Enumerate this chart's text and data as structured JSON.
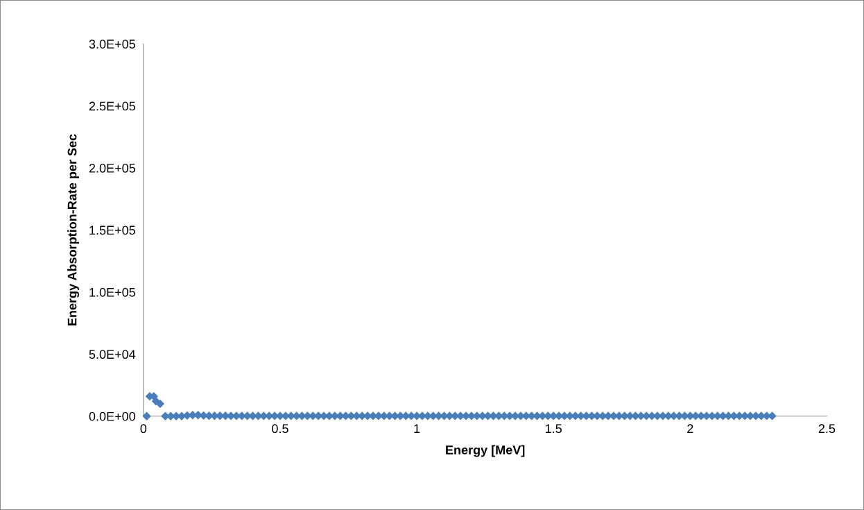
{
  "chart_data": {
    "type": "scatter",
    "xlabel": "Energy [MeV]",
    "ylabel": "Energy Absorption-Rate per Sec",
    "xlim": [
      0,
      2.5
    ],
    "xticks": [
      0,
      0.5,
      1,
      1.5,
      2,
      2.5
    ],
    "ylim": [
      0,
      300000
    ],
    "yticks": [
      {
        "value": 0,
        "label": "0.0E+00"
      },
      {
        "value": 50000,
        "label": "5.0E+04"
      },
      {
        "value": 100000,
        "label": "1.0E+05"
      },
      {
        "value": 150000,
        "label": "1.5E+05"
      },
      {
        "value": 200000,
        "label": "2.0E+05"
      },
      {
        "value": 250000,
        "label": "2.5E+05"
      },
      {
        "value": 300000,
        "label": "3.0E+05"
      }
    ],
    "grid": false,
    "legend": false,
    "marker": "diamond",
    "series": [
      {
        "color": "#4a7ebb",
        "x": [
          0.012,
          0.023,
          0.038,
          0.046,
          0.061,
          0.08,
          0.1,
          0.12,
          0.14,
          0.16,
          0.18,
          0.2,
          0.22,
          0.24,
          0.26,
          0.28,
          0.3,
          0.32,
          0.34,
          0.36,
          0.38,
          0.4,
          0.42,
          0.44,
          0.46,
          0.48,
          0.5,
          0.52,
          0.54,
          0.56,
          0.58,
          0.6,
          0.62,
          0.64,
          0.66,
          0.68,
          0.7,
          0.72,
          0.74,
          0.76,
          0.78,
          0.8,
          0.82,
          0.84,
          0.86,
          0.88,
          0.9,
          0.92,
          0.94,
          0.96,
          0.98,
          1.0,
          1.02,
          1.04,
          1.06,
          1.08,
          1.1,
          1.12,
          1.14,
          1.16,
          1.18,
          1.2,
          1.22,
          1.24,
          1.26,
          1.28,
          1.3,
          1.32,
          1.34,
          1.36,
          1.38,
          1.4,
          1.42,
          1.44,
          1.46,
          1.48,
          1.5,
          1.52,
          1.54,
          1.56,
          1.58,
          1.6,
          1.62,
          1.64,
          1.66,
          1.68,
          1.7,
          1.72,
          1.74,
          1.76,
          1.78,
          1.8,
          1.82,
          1.84,
          1.86,
          1.88,
          1.9,
          1.92,
          1.94,
          1.96,
          1.98,
          2.0,
          2.02,
          2.04,
          2.06,
          2.08,
          2.1,
          2.12,
          2.14,
          2.16,
          2.18,
          2.2,
          2.22,
          2.24,
          2.26,
          2.28,
          2.3
        ],
        "values": [
          0,
          16000,
          16000,
          12000,
          10000,
          0,
          0,
          0,
          0,
          500,
          800,
          800,
          500,
          300,
          300,
          300,
          300,
          200,
          200,
          200,
          200,
          200,
          200,
          200,
          200,
          200,
          200,
          200,
          200,
          200,
          200,
          200,
          200,
          200,
          200,
          200,
          200,
          200,
          200,
          200,
          200,
          200,
          200,
          200,
          200,
          200,
          200,
          200,
          200,
          200,
          200,
          200,
          200,
          200,
          200,
          200,
          200,
          200,
          200,
          200,
          200,
          200,
          200,
          200,
          200,
          200,
          200,
          200,
          200,
          200,
          200,
          200,
          200,
          200,
          200,
          200,
          200,
          200,
          200,
          200,
          200,
          200,
          200,
          200,
          200,
          200,
          200,
          200,
          200,
          200,
          200,
          200,
          200,
          200,
          200,
          200,
          200,
          200,
          200,
          200,
          200,
          200,
          200,
          200,
          200,
          200,
          200,
          200,
          200,
          200,
          200,
          200,
          200,
          200,
          200,
          200,
          200
        ]
      }
    ]
  }
}
